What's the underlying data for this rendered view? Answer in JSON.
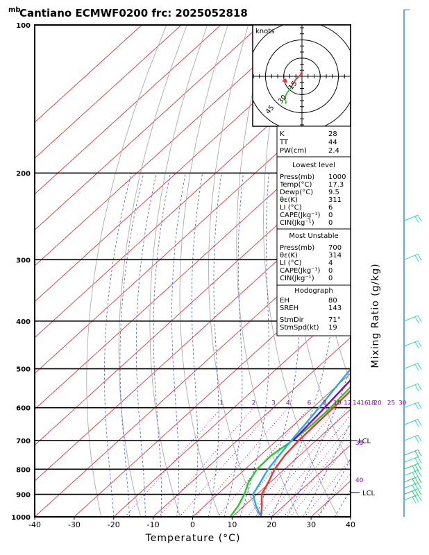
{
  "header": {
    "unit_top": "mb",
    "title": "Cantiano ECMWF0200  frc: 2025052818"
  },
  "chart_data": {
    "type": "line",
    "title": "Cantiano ECMWF0200  frc: 2025052818",
    "xlabel": "Temperature (°C)",
    "ylabel_right": "Mixing Ratio (g/kg)",
    "y_unit": "mb",
    "xlim": [
      -40,
      40
    ],
    "ylim": [
      1000,
      100
    ],
    "y_scale": "log",
    "x_ticks": [
      -40,
      -30,
      -20,
      -10,
      0,
      10,
      20,
      30,
      40
    ],
    "pressure_ticks": [
      100,
      200,
      300,
      400,
      500,
      600,
      700,
      800,
      900,
      1000
    ],
    "mixing_ratio_labels": [
      "1",
      "2",
      "3",
      "4",
      "6",
      "8",
      "10",
      "12",
      "14",
      "16",
      "18",
      "20",
      "25",
      "30"
    ],
    "side_labels": [
      "LCL",
      "35",
      "40",
      "LCL"
    ],
    "series": [
      {
        "color": "#ee3333",
        "p": [
          1000,
          950,
          900,
          850,
          800,
          750,
          700,
          650,
          600,
          550,
          500,
          450,
          400,
          350,
          300,
          250,
          200,
          150,
          100
        ],
        "x": [
          17.3,
          14.5,
          11.2,
          9.5,
          7.5,
          6.2,
          5.6,
          5.4,
          5.2,
          4.8,
          4.5,
          3.6,
          1.6,
          -1.0,
          -3.2,
          -3.8,
          0.5,
          7.0,
          12.0
        ]
      },
      {
        "color": "#22cc22",
        "p": [
          1000,
          950,
          900,
          850,
          800,
          750,
          700,
          650,
          600,
          550,
          500,
          450,
          400,
          350,
          300,
          250,
          200,
          150,
          100
        ],
        "x": [
          9.5,
          8.5,
          6.8,
          4.5,
          3.0,
          2.8,
          4.0,
          4.6,
          4.5,
          3.9,
          2.9,
          0.8,
          -1.6,
          -3.5,
          -6.0,
          -12.5,
          -7.0,
          5.0,
          25.0
        ]
      },
      {
        "color": "#22aaee",
        "p": [
          1000,
          950,
          900,
          850,
          800,
          700,
          600,
          500,
          400,
          300,
          200,
          150,
          120
        ],
        "x": [
          17.3,
          13.0,
          9.0,
          7.5,
          5.8,
          3.7,
          1.6,
          -1.2,
          -4.0,
          -10.0,
          -14.0,
          -21.0,
          -20.5
        ]
      },
      {
        "color": "#8800cc",
        "p": [
          700,
          600,
          500,
          400,
          300,
          200,
          150,
          120
        ],
        "x": [
          4.2,
          3.0,
          1.4,
          -2.2,
          -7.5,
          -10.5,
          -18.0,
          -18.5
        ]
      }
    ]
  },
  "hodograph": {
    "label": "knots",
    "ring_labels": [
      "15",
      "30",
      "45"
    ],
    "trace_u": [
      0.5,
      -1.5,
      -5.5,
      -9.0,
      -12.5,
      -14.5,
      -13.0,
      -14.0
    ],
    "trace_v": [
      5.0,
      1.0,
      -3.0,
      -9.0,
      -14.0,
      -18.5,
      -21.5,
      -22.5
    ]
  },
  "stats": {
    "rows": [
      [
        "K",
        "28"
      ],
      [
        "TT",
        "44"
      ],
      [
        "PW(cm)",
        "2.4"
      ]
    ],
    "lowest_title": "Lowest level",
    "lowest": [
      [
        "Press(mb)",
        "1000"
      ],
      [
        "Temp(°C)",
        "17.3"
      ],
      [
        "Dewp(°C)",
        "9.5"
      ],
      [
        "θε(K)",
        "311"
      ],
      [
        "LI (°C)",
        "6"
      ],
      [
        "CAPE(Jkg⁻¹)",
        "0"
      ],
      [
        "CIN(Jkg⁻¹)",
        "0"
      ]
    ],
    "unstable_title": "Most Unstable",
    "unstable": [
      [
        "Press(mb)",
        "700"
      ],
      [
        "θε(K)",
        "314"
      ],
      [
        "LI (°C)",
        "4"
      ],
      [
        "CAPE(Jkg⁻¹)",
        "0"
      ],
      [
        "CIN(Jkg⁻¹)",
        "0"
      ]
    ],
    "hodo_title": "Hodograph",
    "hodo": [
      [
        "EH",
        "80"
      ],
      [
        "SREH",
        "143"
      ]
    ],
    "storm": [
      [
        "StmDir",
        "71°"
      ],
      [
        "StmSpd(kt)",
        "19"
      ]
    ]
  },
  "colors": {
    "isotherm": "#ee3333",
    "dry_adiabat": "#aaaaaa",
    "moist_adiabat": "#3355ee",
    "mixing_ratio": "#9900cc",
    "wind_barb": "#33ddbb"
  }
}
